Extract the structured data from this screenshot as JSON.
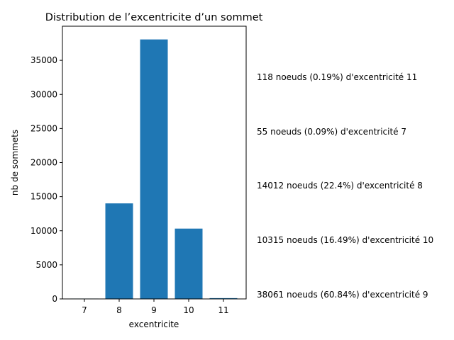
{
  "chart_data": {
    "type": "bar",
    "title": "Distribution de l’excentricite d’un sommet",
    "xlabel": "excentricite",
    "ylabel": "nb de sommets",
    "categories": [
      "7",
      "8",
      "9",
      "10",
      "11"
    ],
    "values": [
      55,
      14012,
      38061,
      10315,
      118
    ],
    "ylim": [
      0,
      40000
    ],
    "yticks": [
      0,
      5000,
      10000,
      15000,
      20000,
      25000,
      30000,
      35000
    ],
    "bar_color": "#1f77b4",
    "grid": false,
    "annotations": [
      "118 noeuds (0.19%) d'excentricité 11",
      "55 noeuds (0.09%) d'excentricité 7",
      "14012 noeuds (22.4%) d'excentricité 8",
      "10315 noeuds (16.49%) d'excentricité 10",
      "38061 noeuds (60.84%) d'excentricité 9"
    ]
  }
}
